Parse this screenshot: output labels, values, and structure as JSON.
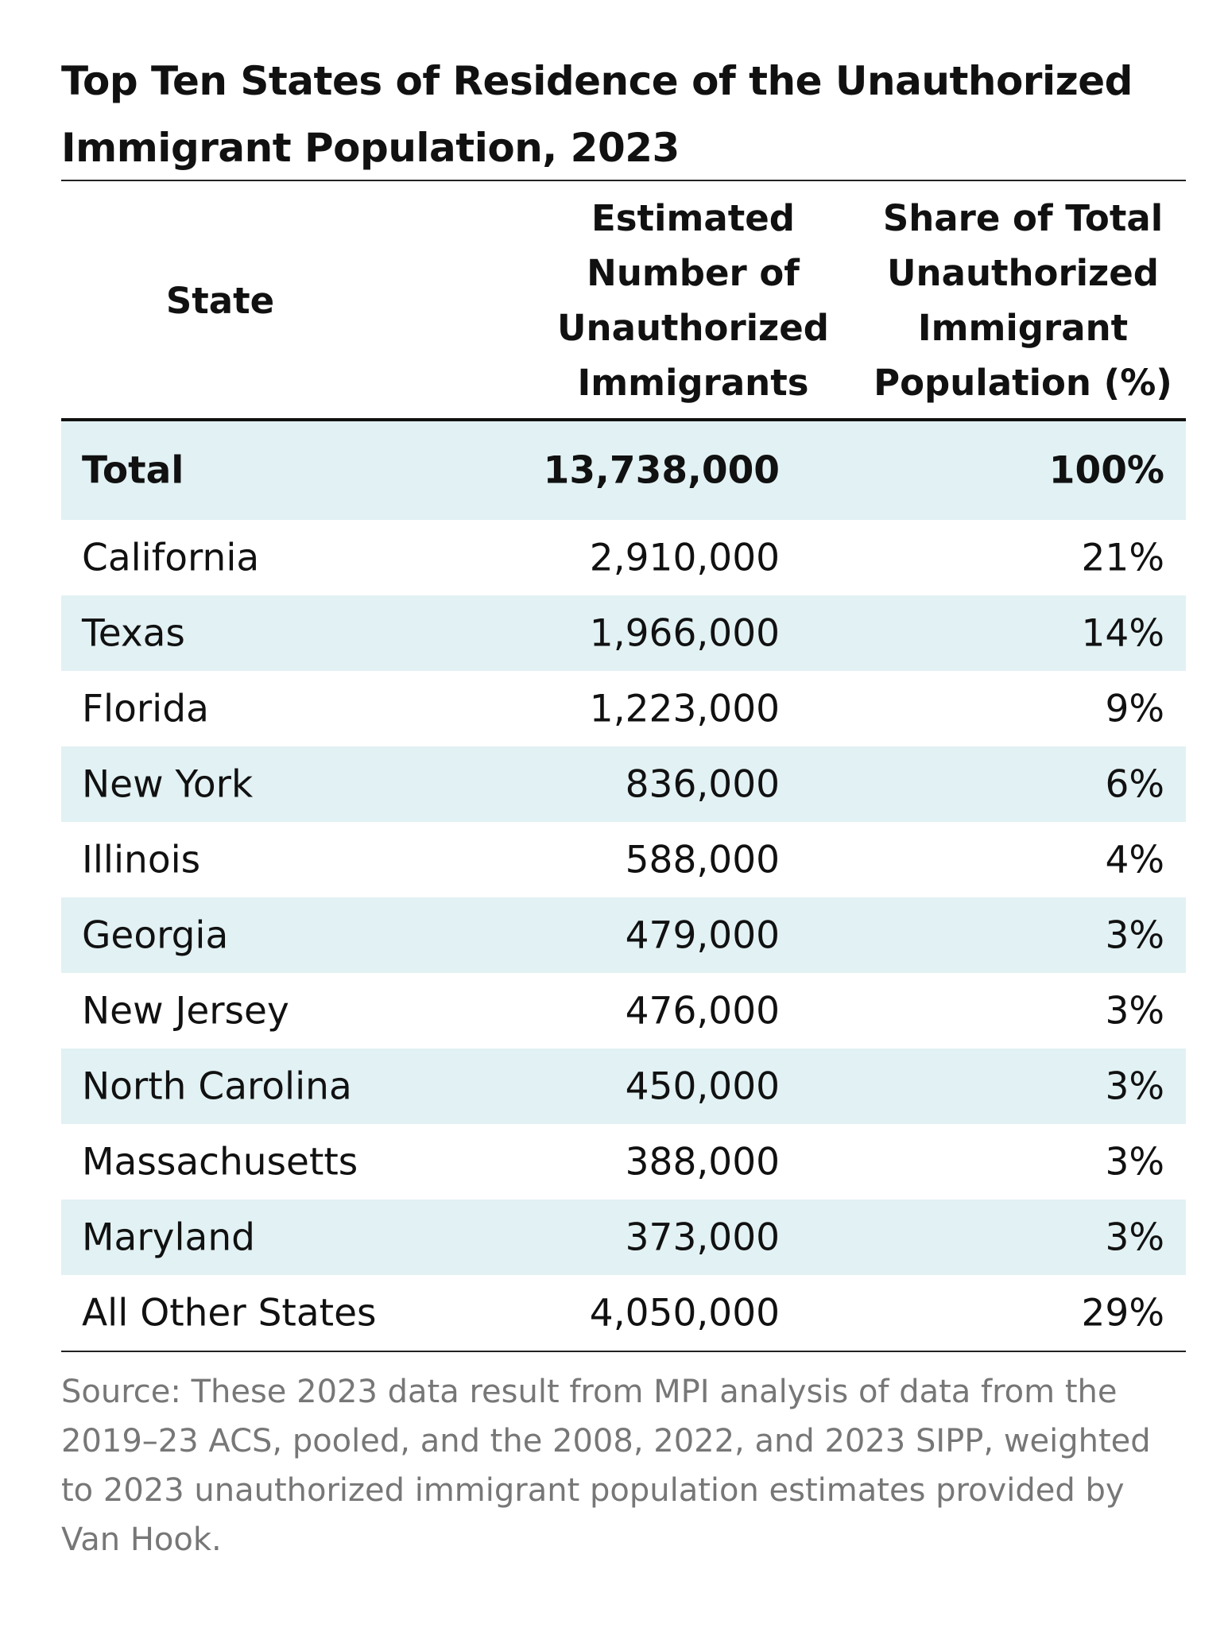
{
  "title": "Top Ten States of Residence of the Unauthorized Immigrant Population, 2023",
  "columns": {
    "state": "State",
    "number": [
      "Estimated",
      "Number of",
      "Unauthorized",
      "Immigrants"
    ],
    "share": [
      "Share of Total",
      "Unauthorized",
      "Immigrant",
      "Population (%)"
    ]
  },
  "rows": [
    {
      "state": "Total",
      "number": "13,738,000",
      "share": "100%"
    },
    {
      "state": "California",
      "number": "2,910,000",
      "share": "21%"
    },
    {
      "state": "Texas",
      "number": "1,966,000",
      "share": "14%"
    },
    {
      "state": "Florida",
      "number": "1,223,000",
      "share": "9%"
    },
    {
      "state": "New York",
      "number": "836,000",
      "share": "6%"
    },
    {
      "state": "Illinois",
      "number": "588,000",
      "share": "4%"
    },
    {
      "state": "Georgia",
      "number": "479,000",
      "share": "3%"
    },
    {
      "state": "New Jersey",
      "number": "476,000",
      "share": "3%"
    },
    {
      "state": "North Carolina",
      "number": "450,000",
      "share": "3%"
    },
    {
      "state": "Massachusetts",
      "number": "388,000",
      "share": "3%"
    },
    {
      "state": "Maryland",
      "number": "373,000",
      "share": "3%"
    },
    {
      "state": "All Other States",
      "number": "4,050,000",
      "share": "29%"
    }
  ],
  "source": "Source: These 2023 data result from MPI analysis of data from the 2019–23 ACS, pooled, and the 2008, 2022, and 2023 SIPP, weighted to 2023 unauthorized immigrant population estimates provided by Van Hook.",
  "colors": {
    "shade": "#e2f1f3",
    "source_text": "#777777"
  }
}
